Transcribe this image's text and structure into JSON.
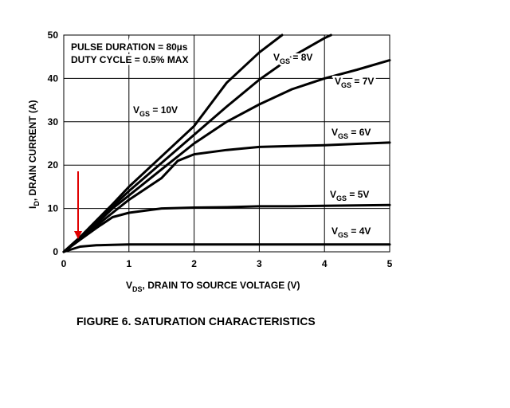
{
  "chart_data": {
    "type": "line",
    "annotations": [
      "PULSE DURATION = 80µs",
      "DUTY CYCLE = 0.5% MAX"
    ],
    "x_label": {
      "main": "V",
      "sub": "DS",
      "rest": ", DRAIN TO SOURCE VOLTAGE (V)"
    },
    "y_label": {
      "main": "I",
      "sub": "D",
      "rest": ", DRAIN CURRENT (A)"
    },
    "caption": "FIGURE 6.  SATURATION CHARACTERISTICS",
    "xlim": [
      0,
      5
    ],
    "xticks": [
      0,
      1,
      2,
      3,
      4,
      5
    ],
    "ylim": [
      0,
      50
    ],
    "yticks": [
      0,
      10,
      20,
      30,
      40,
      50
    ],
    "grid": true,
    "color": "#000000",
    "series": [
      {
        "label": {
          "main": "V",
          "sub": "GS",
          "rest": " = 10V"
        },
        "x": [
          0,
          0.25,
          0.5,
          0.75,
          1,
          1.5,
          2,
          2.5,
          3,
          3.35
        ],
        "values": [
          0,
          3.4,
          7.2,
          11,
          15,
          22,
          29,
          39,
          46,
          50
        ]
      },
      {
        "label": {
          "main": "V",
          "sub": "GS",
          "rest": " = 8V"
        },
        "x": [
          0,
          0.25,
          0.5,
          0.75,
          1,
          1.5,
          2,
          2.5,
          3,
          3.5,
          4,
          4.1
        ],
        "values": [
          0,
          3.3,
          7,
          10.5,
          14,
          20.5,
          27,
          33.5,
          39.7,
          45,
          49.3,
          50
        ]
      },
      {
        "label": {
          "main": "V",
          "sub": "GS",
          "rest": " = 7V"
        },
        "x": [
          0,
          0.25,
          0.5,
          0.75,
          1,
          1.5,
          2,
          2.5,
          3,
          3.5,
          4,
          4.5,
          5
        ],
        "values": [
          0,
          3.2,
          6.5,
          10,
          13,
          19,
          25,
          30,
          34,
          37.5,
          40,
          42,
          44.2
        ]
      },
      {
        "label": {
          "main": "V",
          "sub": "GS",
          "rest": " = 6V"
        },
        "x": [
          0,
          0.25,
          0.5,
          0.75,
          1,
          1.5,
          1.75,
          2,
          2.5,
          3,
          3.5,
          4,
          4.5,
          5
        ],
        "values": [
          0,
          3,
          6,
          9,
          12,
          17,
          21,
          22.5,
          23.5,
          24.2,
          24.4,
          24.6,
          24.9,
          25.2
        ]
      },
      {
        "label": {
          "main": "V",
          "sub": "GS",
          "rest": " = 5V"
        },
        "x": [
          0,
          0.25,
          0.5,
          0.75,
          1,
          1.5,
          2,
          2.5,
          3,
          3.5,
          4,
          4.5,
          5
        ],
        "values": [
          0,
          2.8,
          5.5,
          8,
          9,
          10,
          10.2,
          10.3,
          10.5,
          10.5,
          10.6,
          10.7,
          10.8
        ]
      },
      {
        "label": {
          "main": "V",
          "sub": "GS",
          "rest": " = 4V"
        },
        "x": [
          0,
          0.25,
          0.5,
          0.75,
          1,
          2,
          3,
          4,
          5
        ],
        "values": [
          0,
          1.2,
          1.5,
          1.6,
          1.7,
          1.7,
          1.7,
          1.7,
          1.7
        ]
      }
    ]
  }
}
